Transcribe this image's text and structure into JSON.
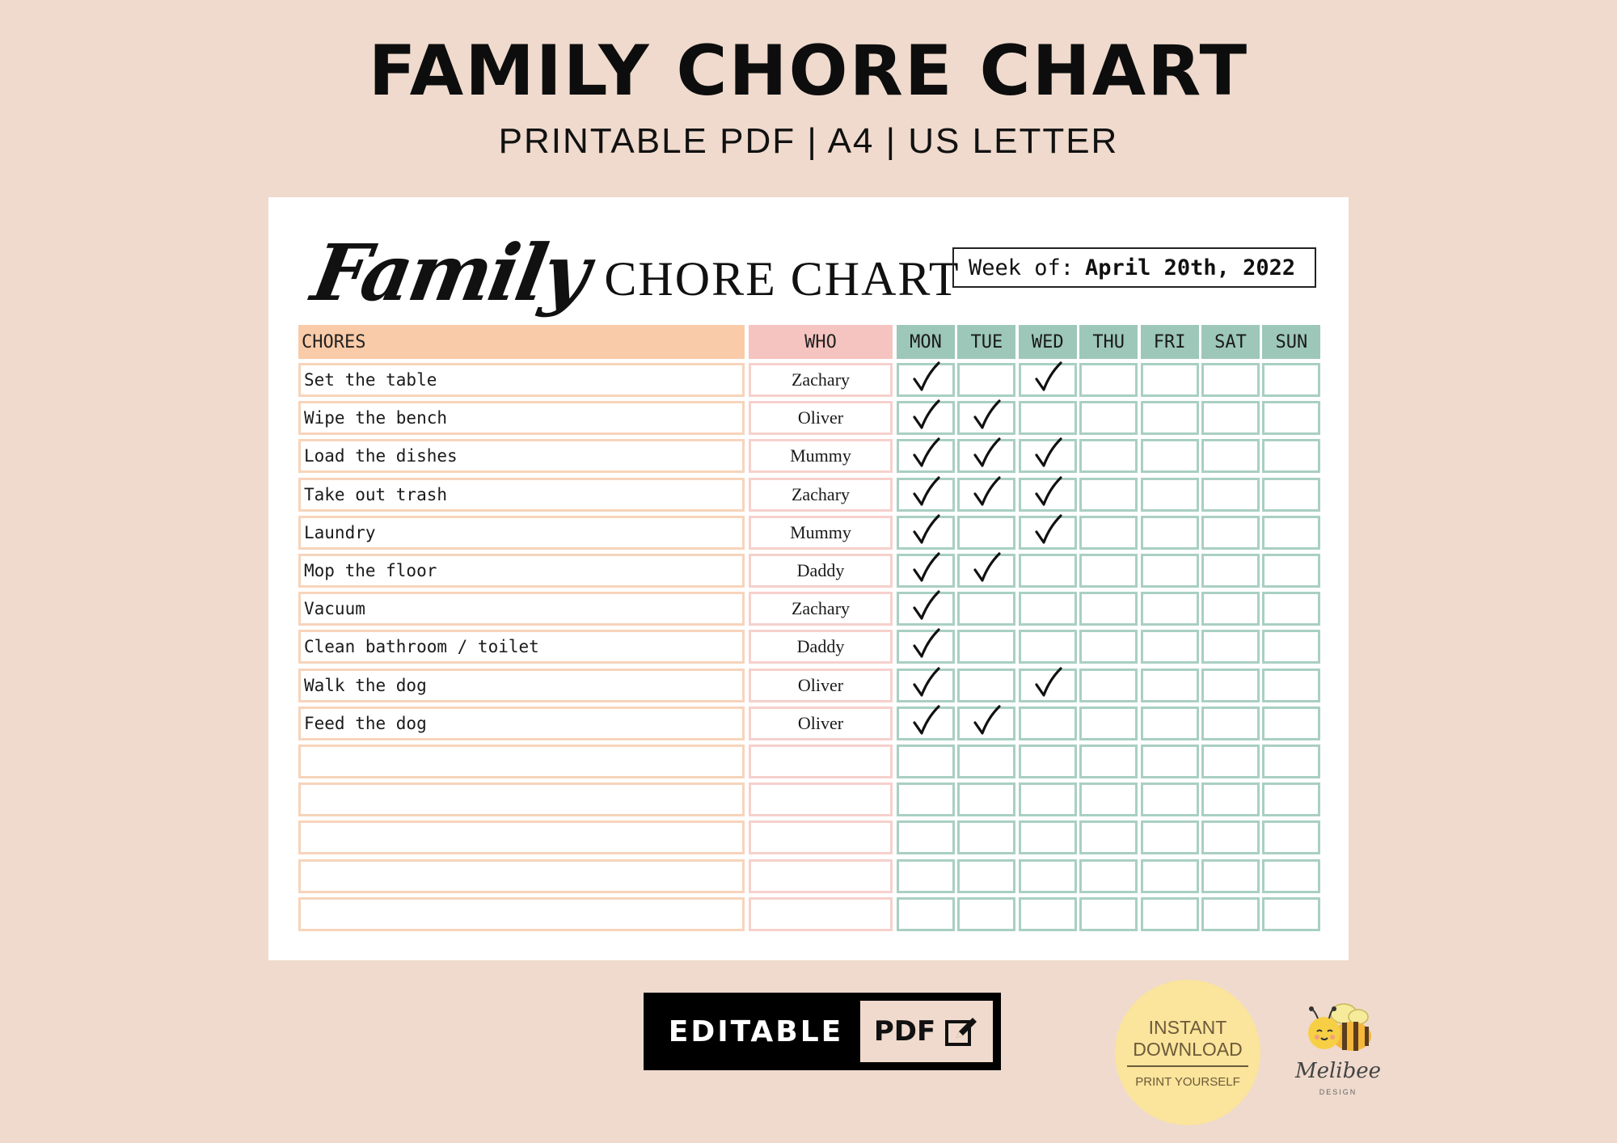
{
  "hero": {
    "title": "FAMILY CHORE CHART",
    "subtitle": "PRINTABLE PDF | A4 | US LETTER"
  },
  "sheet": {
    "title_script": "Family",
    "title_text": "CHORE CHART",
    "week_label": "Week of:",
    "week_value": "April 20th, 2022"
  },
  "table": {
    "headers": {
      "chores": "CHORES",
      "who": "WHO",
      "days": [
        "MON",
        "TUE",
        "WED",
        "THU",
        "FRI",
        "SAT",
        "SUN"
      ]
    },
    "rows": [
      {
        "chore": "Set the table",
        "who": "Zachary",
        "done": [
          true,
          false,
          true,
          false,
          false,
          false,
          false
        ]
      },
      {
        "chore": "Wipe the bench",
        "who": "Oliver",
        "done": [
          true,
          true,
          false,
          false,
          false,
          false,
          false
        ]
      },
      {
        "chore": "Load the dishes",
        "who": "Mummy",
        "done": [
          true,
          true,
          true,
          false,
          false,
          false,
          false
        ]
      },
      {
        "chore": "Take out trash",
        "who": "Zachary",
        "done": [
          true,
          true,
          true,
          false,
          false,
          false,
          false
        ]
      },
      {
        "chore": "Laundry",
        "who": "Mummy",
        "done": [
          true,
          false,
          true,
          false,
          false,
          false,
          false
        ]
      },
      {
        "chore": "Mop the floor",
        "who": "Daddy",
        "done": [
          true,
          true,
          false,
          false,
          false,
          false,
          false
        ]
      },
      {
        "chore": "Vacuum",
        "who": "Zachary",
        "done": [
          true,
          false,
          false,
          false,
          false,
          false,
          false
        ]
      },
      {
        "chore": "Clean bathroom / toilet",
        "who": "Daddy",
        "done": [
          true,
          false,
          false,
          false,
          false,
          false,
          false
        ]
      },
      {
        "chore": "Walk the dog",
        "who": "Oliver",
        "done": [
          true,
          false,
          true,
          false,
          false,
          false,
          false
        ]
      },
      {
        "chore": "Feed the dog",
        "who": "Oliver",
        "done": [
          true,
          true,
          false,
          false,
          false,
          false,
          false
        ]
      },
      {
        "chore": "",
        "who": "",
        "done": [
          false,
          false,
          false,
          false,
          false,
          false,
          false
        ]
      },
      {
        "chore": "",
        "who": "",
        "done": [
          false,
          false,
          false,
          false,
          false,
          false,
          false
        ]
      },
      {
        "chore": "",
        "who": "",
        "done": [
          false,
          false,
          false,
          false,
          false,
          false,
          false
        ]
      },
      {
        "chore": "",
        "who": "",
        "done": [
          false,
          false,
          false,
          false,
          false,
          false,
          false
        ]
      },
      {
        "chore": "",
        "who": "",
        "done": [
          false,
          false,
          false,
          false,
          false,
          false,
          false
        ]
      }
    ]
  },
  "badge": {
    "left": "EDITABLE",
    "right": "PDF",
    "icon": "edit-pencil-icon"
  },
  "download": {
    "line1": "INSTANT",
    "line2": "DOWNLOAD",
    "line3": "PRINT YOURSELF"
  },
  "brand": {
    "name": "Melibee",
    "sub": "DESIGN",
    "icon": "bee-mascot-icon"
  },
  "colors": {
    "background": "#efdacd",
    "chores_header": "#f9cba8",
    "who_header": "#f5c4c0",
    "days_header": "#9cc7b9"
  }
}
